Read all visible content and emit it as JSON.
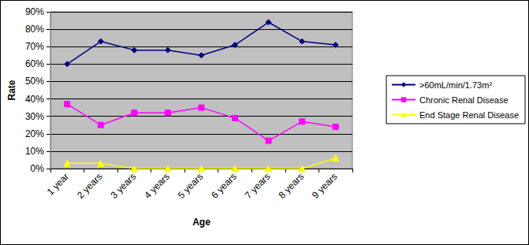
{
  "chart_data": {
    "type": "line",
    "x_label": "Age",
    "y_label": "Rate",
    "categories": [
      "1 year",
      "2 years",
      "3 years",
      "4 years",
      "5 years",
      "6 years",
      "7 years",
      "8 years",
      "9 years"
    ],
    "series": [
      {
        "name": ">60mL/min/1.73m²",
        "color": "#000080",
        "marker": "diamond",
        "line_style": "solid",
        "values": [
          60,
          73,
          68,
          68,
          65,
          71,
          84,
          73,
          71
        ]
      },
      {
        "name": "Chronic Renal Disease",
        "color": "#ff00ff",
        "marker": "square",
        "line_style": "solid",
        "values": [
          37,
          25,
          32,
          32,
          35,
          29,
          16,
          27,
          24
        ]
      },
      {
        "name": "End Stage Renal Disease",
        "color": "#ffff00",
        "marker": "triangle",
        "line_style": "solid",
        "values": [
          3,
          3,
          0,
          0,
          0,
          0,
          0,
          0,
          6
        ]
      }
    ],
    "ylim": [
      0,
      90
    ],
    "yticks": [
      {
        "value": 0,
        "label": "0%"
      },
      {
        "value": 10,
        "label": "10%"
      },
      {
        "value": 20,
        "label": "20%"
      },
      {
        "value": 30,
        "label": "30%"
      },
      {
        "value": 40,
        "label": "40%"
      },
      {
        "value": 50,
        "label": "50%"
      },
      {
        "value": 60,
        "label": "60%"
      },
      {
        "value": 70,
        "label": "70%"
      },
      {
        "value": 80,
        "label": "80%"
      },
      {
        "value": 90,
        "label": "90%"
      }
    ],
    "grid": true,
    "legend": "right"
  }
}
